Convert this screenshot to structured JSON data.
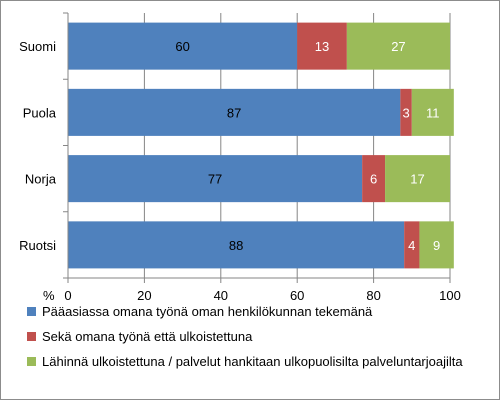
{
  "chart_data": {
    "type": "bar",
    "orientation": "horizontal",
    "stacked": true,
    "categories": [
      "Suomi",
      "Puola",
      "Norja",
      "Ruotsi"
    ],
    "series": [
      {
        "name": "Pääasiassa omana työnä oman henkilökunnan tekemänä",
        "values": [
          60,
          87,
          77,
          88
        ],
        "color": "#4f81bd"
      },
      {
        "name": "Sekä omana työnä että ulkoistettuna",
        "values": [
          13,
          3,
          6,
          4
        ],
        "color": "#c0504d"
      },
      {
        "name": "Lähinnä ulkoistettuna / palvelut hankitaan ulkopuolisilta palveluntarjoajilta",
        "values": [
          27,
          11,
          17,
          9
        ],
        "color": "#9bbb59"
      }
    ],
    "xlabel": "%",
    "xlim": [
      0,
      100
    ],
    "xticks": [
      "0",
      "20",
      "40",
      "60",
      "80",
      "100"
    ],
    "grid": "vertical",
    "legend": "bottom"
  }
}
